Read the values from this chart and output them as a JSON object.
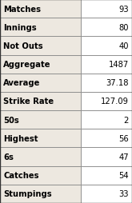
{
  "rows": [
    {
      "label": "Matches",
      "value": "93"
    },
    {
      "label": "Innings",
      "value": "80"
    },
    {
      "label": "Not Outs",
      "value": "40"
    },
    {
      "label": "Aggregate",
      "value": "1487"
    },
    {
      "label": "Average",
      "value": "37.18"
    },
    {
      "label": "Strike Rate",
      "value": "127.09"
    },
    {
      "label": "50s",
      "value": "2"
    },
    {
      "label": "Highest",
      "value": "56"
    },
    {
      "label": "6s",
      "value": "47"
    },
    {
      "label": "Catches",
      "value": "54"
    },
    {
      "label": "Stumpings",
      "value": "33"
    }
  ],
  "label_col_color": "#ede8e0",
  "value_col_color": "#ffffff",
  "border_color": "#888888",
  "label_font_color": "#000000",
  "value_font_color": "#000000",
  "label_fontsize": 7.2,
  "value_fontsize": 7.2,
  "label_fontweight": "bold",
  "value_fontweight": "normal",
  "fig_bg_color": "#ffffff",
  "outer_border_color": "#333333",
  "label_ratio": 0.615
}
